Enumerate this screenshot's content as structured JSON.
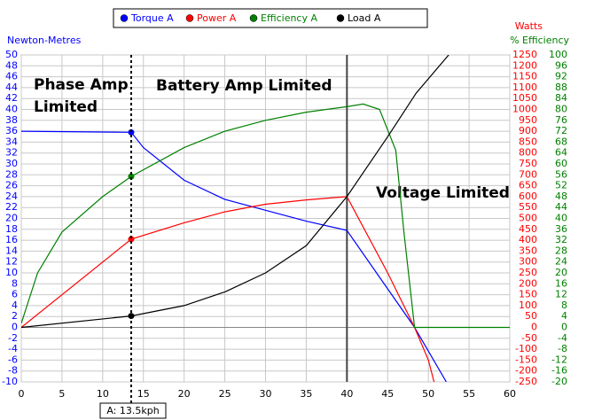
{
  "chart_data": {
    "type": "line",
    "y_label": "Newton-Metres",
    "y2_label": "Watts",
    "y3_label": "% Efficiency",
    "xlim": [
      0,
      60
    ],
    "xticks": [
      0,
      5,
      10,
      15,
      20,
      25,
      30,
      35,
      40,
      45,
      50,
      55,
      60
    ],
    "ylim": [
      -10,
      50
    ],
    "yticks": [
      -10,
      -8,
      -6,
      -4,
      -2,
      0,
      2,
      4,
      6,
      8,
      10,
      12,
      14,
      16,
      18,
      20,
      22,
      24,
      26,
      28,
      30,
      32,
      34,
      36,
      38,
      40,
      42,
      44,
      46,
      48,
      50
    ],
    "y2lim": [
      -250,
      1250
    ],
    "y2ticks": [
      -250,
      -200,
      -150,
      -100,
      -50,
      0,
      50,
      100,
      150,
      200,
      250,
      300,
      350,
      400,
      450,
      500,
      550,
      600,
      650,
      700,
      750,
      800,
      850,
      900,
      950,
      1000,
      1050,
      1100,
      1150,
      1200,
      1250
    ],
    "y3lim": [
      -20,
      100
    ],
    "y3ticks": [
      -20,
      -16,
      -12,
      -8,
      -4,
      0,
      4,
      8,
      12,
      16,
      20,
      24,
      28,
      32,
      36,
      40,
      44,
      48,
      52,
      56,
      60,
      64,
      68,
      72,
      76,
      80,
      84,
      88,
      92,
      96,
      100
    ],
    "grid": true,
    "series": [
      {
        "name": "Torque A",
        "color": "#0000ff",
        "axis": "y",
        "x": [
          0,
          13.5,
          15,
          20,
          25,
          30,
          35,
          40,
          48.3,
          52.2
        ],
        "values": [
          36,
          35.8,
          33,
          27,
          23.5,
          21.5,
          19.5,
          17.8,
          0,
          -10
        ],
        "marker_index": 1
      },
      {
        "name": "Power A",
        "color": "#ff0000",
        "axis": "y2",
        "x": [
          0,
          13.5,
          20,
          25,
          30,
          35,
          40,
          45,
          48.3,
          50,
          50.7
        ],
        "values": [
          0,
          405,
          480,
          530,
          565,
          585,
          600,
          250,
          0,
          -150,
          -250
        ],
        "marker_index": 1
      },
      {
        "name": "Efficiency A",
        "color": "#008000",
        "axis": "y3",
        "x": [
          0,
          2,
          5,
          10,
          13.5,
          20,
          25,
          30,
          35,
          40,
          42,
          44,
          46,
          47,
          48.3,
          60
        ],
        "values": [
          1.5,
          20,
          35,
          48,
          55.4,
          66,
          72,
          76,
          79,
          81,
          82,
          80,
          65,
          35,
          0,
          0
        ],
        "marker_index": 4
      },
      {
        "name": "Load A",
        "color": "#000000",
        "axis": "y",
        "x": [
          0,
          13.5,
          20,
          25,
          30,
          35,
          40,
          45,
          48.5,
          52.5
        ],
        "values": [
          0,
          2.1,
          4,
          6.5,
          10,
          15,
          24,
          35,
          43,
          50
        ],
        "marker_index": 1
      }
    ],
    "cursor": {
      "x": 13.5,
      "label": "A: 13.5kph"
    },
    "limit_line": 40,
    "annotations": [
      "Phase Amp",
      "Limited",
      "Battery Amp Limited",
      "Voltage Limited"
    ]
  }
}
